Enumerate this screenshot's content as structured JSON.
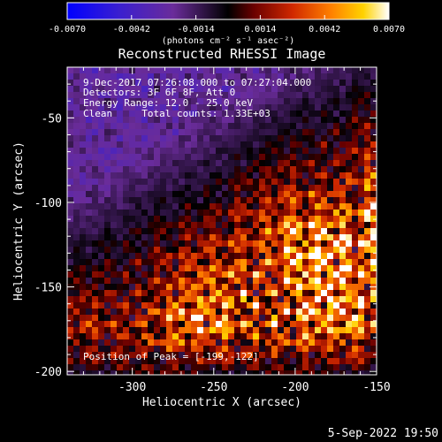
{
  "chart_data": {
    "type": "heatmap",
    "title": "Reconstructed RHESSI Image",
    "xlabel": "Heliocentric X (arcsec)",
    "ylabel": "Heliocentric Y (arcsec)",
    "xlim": [
      -340,
      -150
    ],
    "ylim": [
      -202,
      -20
    ],
    "x_ticks": [
      "-300",
      "-250",
      "-200",
      "-150"
    ],
    "x_tick_values": [
      -300,
      -250,
      -200,
      -150
    ],
    "y_ticks": [
      "-50",
      "-100",
      "-150",
      "-200"
    ],
    "y_tick_values": [
      -50,
      -100,
      -150,
      -200
    ],
    "colorbar": {
      "range": [
        -0.007,
        0.007
      ],
      "tick_labels": [
        "-0.0070",
        "-0.0042",
        "-0.0014",
        "0.0014",
        "0.0042",
        "0.0070"
      ],
      "tick_values": [
        -0.007,
        -0.0042,
        -0.0014,
        0.0014,
        0.0042,
        0.007
      ],
      "units": "(photons cm⁻² s⁻¹ asec⁻²)",
      "colors": [
        "#0000ff",
        "#5a2ca0",
        "#7a3a8a",
        "#000000",
        "#aa1000",
        "#ff6a00",
        "#ffd000",
        "#ffffff"
      ]
    },
    "annotations": [
      "9-Dec-2017 07:26:08.000 to 07:27:04.000",
      "Detectors: 3F 6F 8F, Att 0",
      "Energy Range: 12.0 - 25.0 keV",
      "Clean     Total counts: 1.33E+03"
    ],
    "peak_label": "Position of Peak = [-199,-122]",
    "peak_position": [
      -199,
      -122
    ],
    "total_counts": 1330,
    "energy_range_kev": [
      12.0,
      25.0
    ],
    "timestamp": "5-Sep-2022 19:50"
  }
}
